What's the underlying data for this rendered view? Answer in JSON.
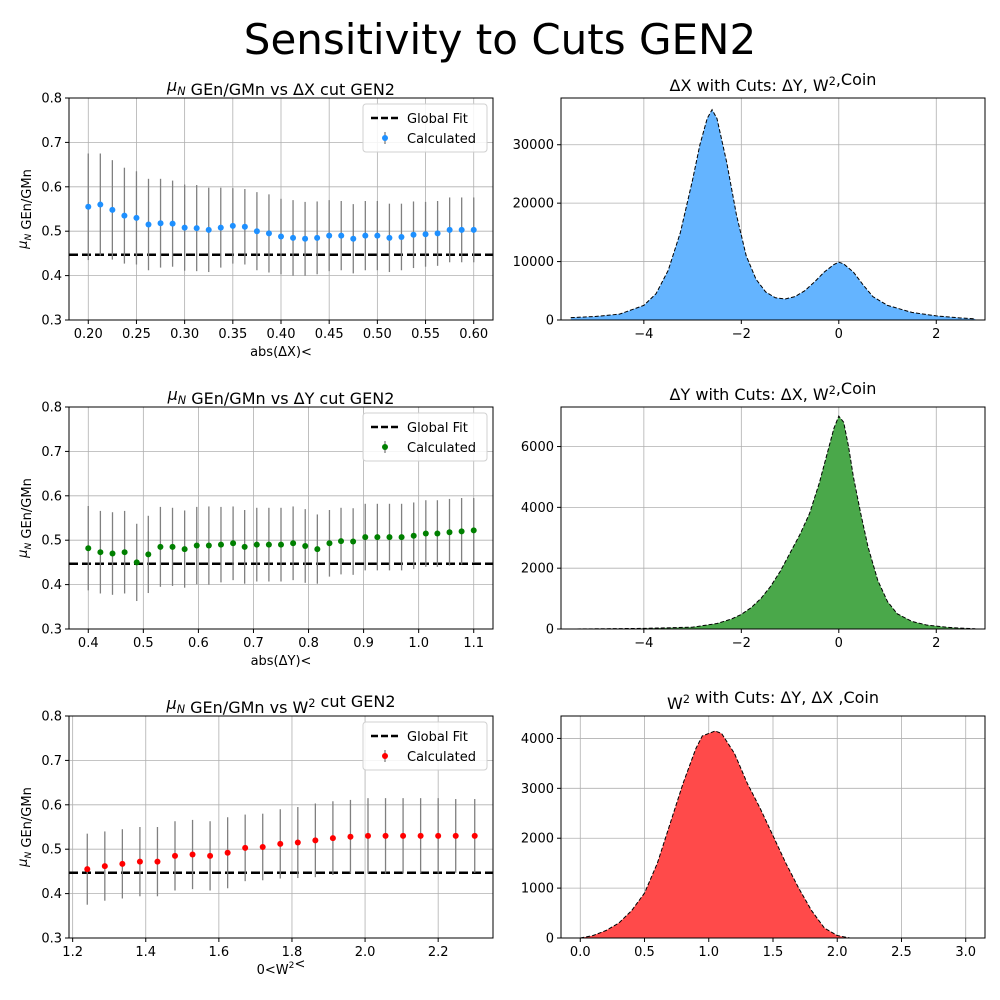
{
  "figure": {
    "title": "Sensitivity to Cuts GEN2"
  },
  "chart_data": [
    {
      "type": "scatter",
      "title": "μ_N GEn/GMn vs ΔX cut GEN2",
      "xlabel": "abs(ΔX)<",
      "ylabel": "μ_N GEn/GMn",
      "xlim": [
        0.18,
        0.62
      ],
      "ylim": [
        0.3,
        0.8
      ],
      "xticks": [
        0.2,
        0.25,
        0.3,
        0.35,
        0.4,
        0.45,
        0.5,
        0.55,
        0.6
      ],
      "xtick_labels": [
        "0.20",
        "0.25",
        "0.30",
        "0.35",
        "0.40",
        "0.45",
        "0.50",
        "0.55",
        "0.60"
      ],
      "yticks": [
        0.3,
        0.4,
        0.5,
        0.6,
        0.7,
        0.8
      ],
      "ytick_labels": [
        "0.3",
        "0.4",
        "0.5",
        "0.6",
        "0.7",
        "0.8"
      ],
      "grid": true,
      "legend": "top-right",
      "color": "#1e90ff",
      "global_fit": 0.447,
      "legend_fit_label": "Global Fit",
      "legend_calc_label": "Calculated",
      "x": [
        0.2,
        0.2125,
        0.225,
        0.2375,
        0.25,
        0.2625,
        0.275,
        0.2875,
        0.3,
        0.3125,
        0.325,
        0.3375,
        0.35,
        0.3625,
        0.375,
        0.3875,
        0.4,
        0.4125,
        0.425,
        0.4375,
        0.45,
        0.4625,
        0.475,
        0.4875,
        0.5,
        0.5125,
        0.525,
        0.5375,
        0.55,
        0.5625,
        0.575,
        0.5875,
        0.6
      ],
      "y": [
        0.555,
        0.56,
        0.548,
        0.535,
        0.53,
        0.515,
        0.518,
        0.517,
        0.508,
        0.507,
        0.503,
        0.508,
        0.512,
        0.51,
        0.5,
        0.495,
        0.488,
        0.485,
        0.483,
        0.485,
        0.49,
        0.49,
        0.483,
        0.49,
        0.49,
        0.485,
        0.487,
        0.492,
        0.493,
        0.495,
        0.503,
        0.503,
        0.503
      ],
      "err": [
        0.12,
        0.115,
        0.112,
        0.108,
        0.105,
        0.103,
        0.1,
        0.097,
        0.097,
        0.097,
        0.095,
        0.09,
        0.085,
        0.085,
        0.088,
        0.088,
        0.085,
        0.085,
        0.083,
        0.082,
        0.08,
        0.078,
        0.078,
        0.078,
        0.078,
        0.077,
        0.075,
        0.075,
        0.073,
        0.073,
        0.073,
        0.073,
        0.073
      ]
    },
    {
      "type": "area",
      "title": "ΔX with Cuts: ΔY, W²,Coin",
      "xlim": [
        -5.7,
        3.0
      ],
      "ylim": [
        0,
        38000
      ],
      "xticks": [
        -4,
        -2,
        0,
        2
      ],
      "xtick_labels": [
        "−4",
        "−2",
        "0",
        "2"
      ],
      "yticks": [
        0,
        10000,
        20000,
        30000
      ],
      "ytick_labels": [
        "0",
        "10000",
        "20000",
        "30000"
      ],
      "grid": true,
      "color": "#64b4ff",
      "x": [
        -5.5,
        -5.0,
        -4.5,
        -4.0,
        -3.75,
        -3.5,
        -3.25,
        -3.0,
        -2.85,
        -2.7,
        -2.6,
        -2.5,
        -2.3,
        -2.1,
        -1.9,
        -1.7,
        -1.5,
        -1.3,
        -1.1,
        -0.9,
        -0.7,
        -0.5,
        -0.3,
        -0.1,
        0.0,
        0.1,
        0.3,
        0.5,
        0.7,
        1.0,
        1.5,
        2.0,
        2.5,
        2.8
      ],
      "y": [
        400,
        600,
        1000,
        2500,
        4500,
        8500,
        15000,
        24000,
        30000,
        34500,
        36000,
        34500,
        27000,
        18000,
        11000,
        7000,
        4800,
        3800,
        3600,
        4000,
        5000,
        6500,
        8200,
        9500,
        9900,
        9600,
        8200,
        6000,
        4000,
        2500,
        1300,
        700,
        350,
        200
      ]
    },
    {
      "type": "scatter",
      "title": "μ_N GEn/GMn vs ΔY cut GEN2",
      "xlabel": "abs(ΔY)<",
      "ylabel": "μ_N GEn/GMn",
      "xlim": [
        0.365,
        1.135
      ],
      "ylim": [
        0.3,
        0.8
      ],
      "xticks": [
        0.4,
        0.5,
        0.6,
        0.7,
        0.8,
        0.9,
        1.0,
        1.1
      ],
      "xtick_labels": [
        "0.4",
        "0.5",
        "0.6",
        "0.7",
        "0.8",
        "0.9",
        "1.0",
        "1.1"
      ],
      "yticks": [
        0.3,
        0.4,
        0.5,
        0.6,
        0.7,
        0.8
      ],
      "ytick_labels": [
        "0.3",
        "0.4",
        "0.5",
        "0.6",
        "0.7",
        "0.8"
      ],
      "grid": true,
      "legend": "top-right",
      "color": "#008000",
      "global_fit": 0.447,
      "legend_fit_label": "Global Fit",
      "legend_calc_label": "Calculated",
      "x": [
        0.4,
        0.422,
        0.444,
        0.466,
        0.488,
        0.509,
        0.531,
        0.553,
        0.575,
        0.597,
        0.619,
        0.641,
        0.663,
        0.684,
        0.706,
        0.728,
        0.75,
        0.772,
        0.794,
        0.816,
        0.838,
        0.859,
        0.881,
        0.903,
        0.925,
        0.947,
        0.969,
        0.991,
        1.013,
        1.034,
        1.056,
        1.078,
        1.1
      ],
      "y": [
        0.482,
        0.473,
        0.47,
        0.473,
        0.45,
        0.468,
        0.485,
        0.485,
        0.48,
        0.488,
        0.488,
        0.49,
        0.493,
        0.485,
        0.49,
        0.49,
        0.49,
        0.493,
        0.487,
        0.48,
        0.493,
        0.498,
        0.497,
        0.507,
        0.507,
        0.507,
        0.507,
        0.51,
        0.515,
        0.515,
        0.518,
        0.52,
        0.522
      ],
      "err": [
        0.095,
        0.093,
        0.093,
        0.093,
        0.087,
        0.087,
        0.09,
        0.088,
        0.087,
        0.087,
        0.088,
        0.085,
        0.083,
        0.083,
        0.083,
        0.083,
        0.083,
        0.083,
        0.083,
        0.078,
        0.075,
        0.075,
        0.075,
        0.075,
        0.075,
        0.075,
        0.075,
        0.075,
        0.075,
        0.075,
        0.075,
        0.075,
        0.073
      ]
    },
    {
      "type": "area",
      "title": "ΔY with Cuts: ΔX, W²,Coin",
      "xlim": [
        -5.7,
        3.0
      ],
      "ylim": [
        0,
        7300
      ],
      "xticks": [
        -4,
        -2,
        0,
        2
      ],
      "xtick_labels": [
        "−4",
        "−2",
        "0",
        "2"
      ],
      "yticks": [
        0,
        2000,
        4000,
        6000
      ],
      "ytick_labels": [
        "0",
        "2000",
        "4000",
        "6000"
      ],
      "grid": true,
      "color": "#4aa84a",
      "x": [
        -5.5,
        -4.0,
        -3.0,
        -2.5,
        -2.2,
        -2.0,
        -1.8,
        -1.6,
        -1.4,
        -1.2,
        -1.0,
        -0.8,
        -0.6,
        -0.4,
        -0.25,
        -0.1,
        0.0,
        0.1,
        0.2,
        0.3,
        0.45,
        0.6,
        0.8,
        1.0,
        1.2,
        1.5,
        1.8,
        2.2,
        2.5,
        2.8
      ],
      "y": [
        0,
        20,
        60,
        180,
        330,
        480,
        700,
        1000,
        1400,
        1900,
        2500,
        3100,
        3800,
        4800,
        5700,
        6600,
        7000,
        6800,
        6000,
        5000,
        3800,
        2700,
        1600,
        900,
        500,
        250,
        130,
        60,
        30,
        10
      ]
    },
    {
      "type": "scatter",
      "title": "μ_N GEn/GMn vs W² cut GEN2",
      "xlabel": "0<W²<",
      "ylabel": "μ_N GEn/GMn",
      "xlim": [
        1.19,
        2.35
      ],
      "ylim": [
        0.3,
        0.8
      ],
      "xticks": [
        1.2,
        1.4,
        1.6,
        1.8,
        2.0,
        2.2
      ],
      "xtick_labels": [
        "1.2",
        "1.4",
        "1.6",
        "1.8",
        "2.0",
        "2.2"
      ],
      "yticks": [
        0.3,
        0.4,
        0.5,
        0.6,
        0.7,
        0.8
      ],
      "ytick_labels": [
        "0.3",
        "0.4",
        "0.5",
        "0.6",
        "0.7",
        "0.8"
      ],
      "grid": true,
      "legend": "top-right",
      "color": "#ff0000",
      "global_fit": 0.447,
      "legend_fit_label": "Global Fit",
      "legend_calc_label": "Calculated",
      "x": [
        1.24,
        1.288,
        1.336,
        1.384,
        1.432,
        1.48,
        1.528,
        1.576,
        1.624,
        1.672,
        1.72,
        1.768,
        1.816,
        1.864,
        1.912,
        1.96,
        2.008,
        2.056,
        2.104,
        2.152,
        2.2,
        2.248,
        2.3
      ],
      "y": [
        0.455,
        0.462,
        0.467,
        0.472,
        0.472,
        0.485,
        0.488,
        0.485,
        0.492,
        0.503,
        0.505,
        0.512,
        0.515,
        0.52,
        0.525,
        0.528,
        0.53,
        0.53,
        0.53,
        0.53,
        0.53,
        0.53,
        0.53
      ],
      "err": [
        0.08,
        0.078,
        0.078,
        0.078,
        0.078,
        0.078,
        0.078,
        0.078,
        0.08,
        0.075,
        0.075,
        0.078,
        0.08,
        0.083,
        0.083,
        0.083,
        0.085,
        0.085,
        0.085,
        0.085,
        0.085,
        0.083,
        0.083
      ]
    },
    {
      "type": "area",
      "title": "W² with Cuts: ΔY, ΔX ,Coin",
      "xlim": [
        -0.15,
        3.15
      ],
      "ylim": [
        0,
        4450
      ],
      "xticks": [
        0.0,
        0.5,
        1.0,
        1.5,
        2.0,
        2.5,
        3.0
      ],
      "xtick_labels": [
        "0.0",
        "0.5",
        "1.0",
        "1.5",
        "2.0",
        "2.5",
        "3.0"
      ],
      "yticks": [
        0,
        1000,
        2000,
        3000,
        4000
      ],
      "ytick_labels": [
        "0",
        "1000",
        "2000",
        "3000",
        "4000"
      ],
      "grid": true,
      "color": "#ff4a4a",
      "x": [
        0.0,
        0.1,
        0.2,
        0.3,
        0.4,
        0.5,
        0.6,
        0.7,
        0.8,
        0.9,
        0.95,
        1.0,
        1.05,
        1.1,
        1.15,
        1.2,
        1.3,
        1.4,
        1.5,
        1.6,
        1.7,
        1.8,
        1.9,
        2.0,
        2.1,
        2.3,
        2.6,
        3.0
      ],
      "y": [
        0,
        50,
        150,
        300,
        550,
        900,
        1500,
        2300,
        3100,
        3800,
        4050,
        4100,
        4150,
        4100,
        3900,
        3700,
        3100,
        2600,
        2050,
        1500,
        1000,
        550,
        200,
        50,
        0,
        0,
        0,
        0
      ]
    }
  ]
}
